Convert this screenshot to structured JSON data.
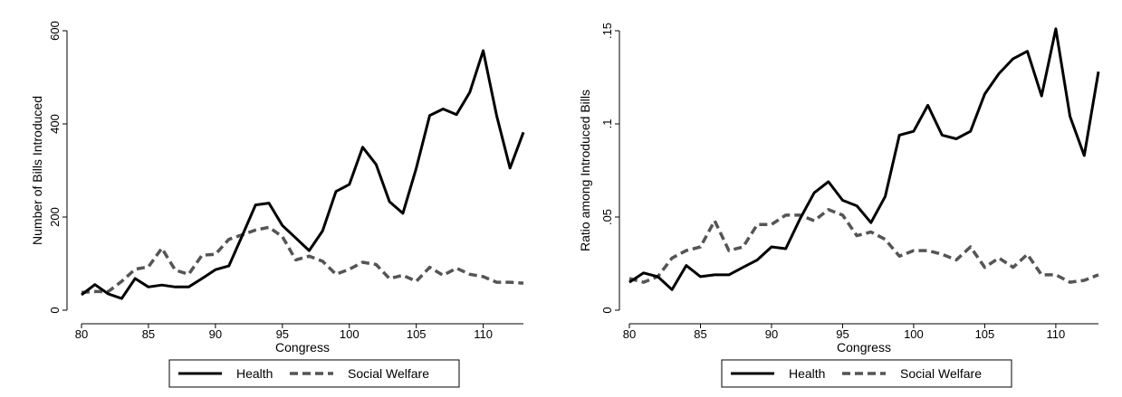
{
  "chart_data": [
    {
      "type": "line",
      "xlabel": "Congress",
      "ylabel": "Number of Bills Introduced",
      "xlim": [
        80,
        113
      ],
      "ylim": [
        0,
        600
      ],
      "xticks": [
        80,
        85,
        90,
        95,
        100,
        105,
        110
      ],
      "yticks": [
        0,
        200,
        400,
        600
      ],
      "ytick_labels": [
        "0",
        "200",
        "400",
        "600"
      ],
      "legend_position": "bottom",
      "x": [
        80,
        81,
        82,
        83,
        84,
        85,
        86,
        87,
        88,
        89,
        90,
        91,
        92,
        93,
        94,
        95,
        96,
        97,
        98,
        99,
        100,
        101,
        102,
        103,
        104,
        105,
        106,
        107,
        108,
        109,
        110,
        111,
        112,
        113
      ],
      "series": [
        {
          "name": "Health",
          "style": "solid",
          "color": "#000000",
          "values": [
            33,
            55,
            35,
            25,
            68,
            50,
            54,
            50,
            50,
            68,
            87,
            95,
            160,
            226,
            230,
            182,
            155,
            128,
            170,
            255,
            270,
            350,
            313,
            233,
            208,
            305,
            418,
            432,
            420,
            468,
            557,
            418,
            305,
            382
          ]
        },
        {
          "name": "Social Welfare",
          "style": "dashed",
          "color": "#555555",
          "values": [
            38,
            40,
            40,
            62,
            88,
            93,
            133,
            86,
            77,
            118,
            120,
            152,
            162,
            172,
            178,
            158,
            108,
            116,
            105,
            77,
            88,
            103,
            98,
            68,
            75,
            62,
            92,
            75,
            90,
            77,
            72,
            60,
            60,
            58
          ]
        }
      ]
    },
    {
      "type": "line",
      "xlabel": "Congress",
      "ylabel": "Ratio among Introduced Bills",
      "xlim": [
        80,
        113
      ],
      "ylim": [
        0,
        0.15
      ],
      "xticks": [
        80,
        85,
        90,
        95,
        100,
        105,
        110
      ],
      "yticks": [
        0,
        0.05,
        0.1,
        0.15
      ],
      "ytick_labels": [
        "0",
        ".05",
        ".1",
        ".15"
      ],
      "legend_position": "bottom",
      "x": [
        80,
        81,
        82,
        83,
        84,
        85,
        86,
        87,
        88,
        89,
        90,
        91,
        92,
        93,
        94,
        95,
        96,
        97,
        98,
        99,
        100,
        101,
        102,
        103,
        104,
        105,
        106,
        107,
        108,
        109,
        110,
        111,
        112,
        113
      ],
      "series": [
        {
          "name": "Health",
          "style": "solid",
          "color": "#000000",
          "values": [
            0.015,
            0.02,
            0.018,
            0.011,
            0.024,
            0.018,
            0.019,
            0.019,
            0.023,
            0.027,
            0.034,
            0.033,
            0.049,
            0.063,
            0.069,
            0.059,
            0.056,
            0.047,
            0.061,
            0.094,
            0.096,
            0.11,
            0.094,
            0.092,
            0.096,
            0.116,
            0.127,
            0.135,
            0.139,
            0.115,
            0.151,
            0.104,
            0.083,
            0.128
          ]
        },
        {
          "name": "Social Welfare",
          "style": "dashed",
          "color": "#555555",
          "values": [
            0.017,
            0.015,
            0.018,
            0.028,
            0.032,
            0.034,
            0.048,
            0.032,
            0.034,
            0.046,
            0.046,
            0.051,
            0.051,
            0.048,
            0.054,
            0.051,
            0.04,
            0.042,
            0.038,
            0.029,
            0.032,
            0.032,
            0.03,
            0.027,
            0.034,
            0.023,
            0.028,
            0.023,
            0.03,
            0.019,
            0.019,
            0.015,
            0.016,
            0.019
          ]
        }
      ]
    }
  ]
}
